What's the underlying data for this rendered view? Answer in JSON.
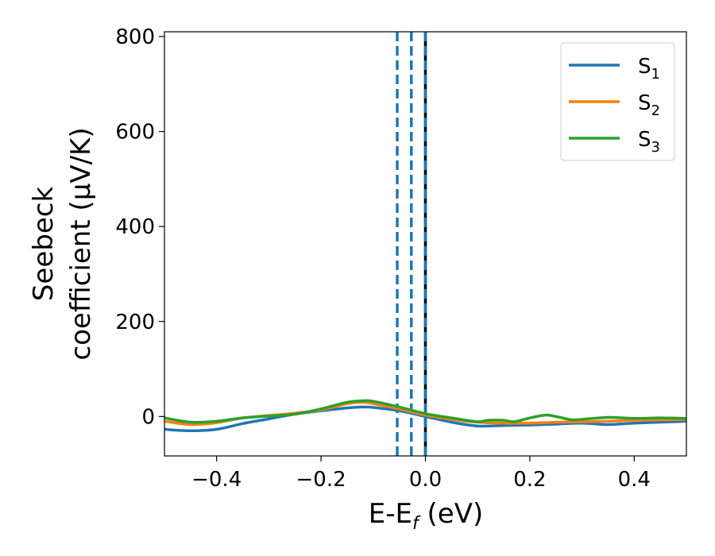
{
  "chart_data": {
    "type": "line",
    "title": "",
    "xlabel": "E-E",
    "xlabel_sub": "f",
    "xlabel_unit": " (eV)",
    "ylabel_line1": "Seebeck",
    "ylabel_line2": "coefficient  (μV/K)",
    "xlim": [
      -0.5,
      0.5
    ],
    "ylim": [
      -83,
      810
    ],
    "xticks": [
      -0.4,
      -0.2,
      0.0,
      0.2,
      0.4
    ],
    "xtick_labels": [
      "−0.4",
      "−0.2",
      "0.0",
      "0.2",
      "0.4"
    ],
    "yticks": [
      0,
      200,
      400,
      600,
      800
    ],
    "ytick_labels": [
      "0",
      "200",
      "400",
      "600",
      "800"
    ],
    "grid": false,
    "legend_position": "top-right",
    "vlines": [
      {
        "x": -0.054,
        "style": "dashed",
        "color": "#1f77b4"
      },
      {
        "x": -0.027,
        "style": "dashed",
        "color": "#1f77b4"
      },
      {
        "x": 0.0,
        "style": "solid",
        "color": "#000000"
      },
      {
        "x": 0.0,
        "style": "dashed",
        "color": "#1f77b4"
      }
    ],
    "series": [
      {
        "name": "S",
        "subscript": "1",
        "color": "#1f77b4",
        "x": [
          -0.5,
          -0.45,
          -0.4,
          -0.35,
          -0.3,
          -0.25,
          -0.2,
          -0.15,
          -0.12,
          -0.1,
          -0.05,
          0.0,
          0.05,
          0.1,
          0.15,
          0.2,
          0.25,
          0.3,
          0.35,
          0.4,
          0.45,
          0.5
        ],
        "values": [
          -27,
          -30,
          -27,
          -15,
          -5,
          5,
          12,
          18,
          20,
          19,
          12,
          0,
          -12,
          -20,
          -19,
          -18,
          -16,
          -14,
          -17,
          -14,
          -12,
          -10
        ]
      },
      {
        "name": "S",
        "subscript": "2",
        "color": "#ff7f0e",
        "x": [
          -0.5,
          -0.45,
          -0.4,
          -0.35,
          -0.3,
          -0.25,
          -0.2,
          -0.15,
          -0.12,
          -0.1,
          -0.05,
          0.0,
          0.05,
          0.1,
          0.15,
          0.2,
          0.25,
          0.3,
          0.35,
          0.4,
          0.45,
          0.5
        ],
        "values": [
          -10,
          -17,
          -13,
          -3,
          2,
          7,
          14,
          27,
          30,
          27,
          16,
          3,
          -6,
          -12,
          -14,
          -14,
          -12,
          -11,
          -10,
          -8,
          -7,
          -6
        ]
      },
      {
        "name": "S",
        "subscript": "3",
        "color": "#2ca02c",
        "x": [
          -0.5,
          -0.45,
          -0.4,
          -0.35,
          -0.3,
          -0.25,
          -0.2,
          -0.15,
          -0.12,
          -0.1,
          -0.05,
          0.0,
          0.05,
          0.1,
          0.12,
          0.15,
          0.17,
          0.2,
          0.23,
          0.25,
          0.28,
          0.3,
          0.35,
          0.4,
          0.45,
          0.5
        ],
        "values": [
          -3,
          -12,
          -10,
          -3,
          1,
          5,
          16,
          30,
          33,
          32,
          20,
          6,
          -3,
          -11,
          -8,
          -8,
          -11,
          -3,
          3,
          0,
          -7,
          -6,
          -2,
          -4,
          -3,
          -4
        ]
      }
    ]
  }
}
